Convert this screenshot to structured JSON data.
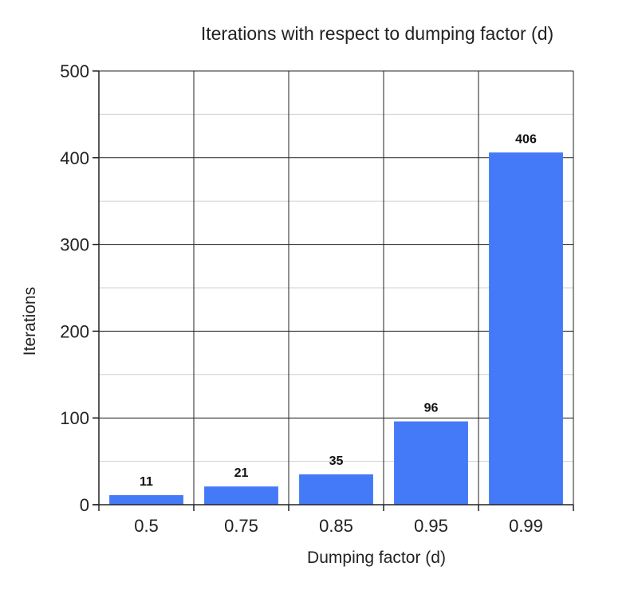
{
  "chart_data": {
    "type": "bar",
    "title": "Iterations with respect to dumping factor (d)",
    "xlabel": "Dumping factor (d)",
    "ylabel": "Iterations",
    "categories": [
      "0.5",
      "0.75",
      "0.85",
      "0.95",
      "0.99"
    ],
    "values": [
      11,
      21,
      35,
      96,
      406
    ],
    "data_labels": [
      "11",
      "21",
      "35",
      "96",
      "406"
    ],
    "ylim": [
      0,
      500
    ],
    "yticks": [
      0,
      100,
      200,
      300,
      400,
      500
    ],
    "ytick_labels": [
      "0",
      "100",
      "200",
      "300",
      "400",
      "500"
    ],
    "grid": true,
    "bar_color": "#4479f8",
    "grid_major_color": "#222222",
    "grid_minor_color": "#d0d0d0"
  }
}
